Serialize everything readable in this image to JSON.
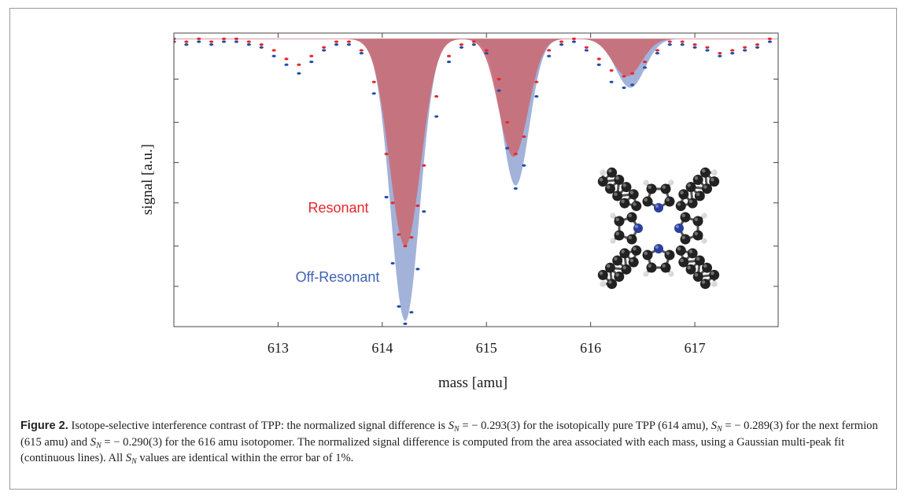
{
  "chart_data": {
    "type": "area",
    "xlabel": "mass [amu]",
    "ylabel": "signal [a.u.]",
    "xlim": [
      612.0,
      617.8
    ],
    "ylim": [
      -1.0,
      0.02
    ],
    "x_ticks": [
      613,
      614,
      615,
      616,
      617
    ],
    "x_tick_labels": [
      "613",
      "614",
      "615",
      "616",
      "617"
    ],
    "y_ticks": [
      -0.86,
      -0.72,
      -0.57,
      -0.43,
      -0.29,
      -0.14
    ],
    "grid": false,
    "legend": "none",
    "series": [
      {
        "name": "Off-Resonant",
        "color": "#9aabd6",
        "marker_color": "#1f4fa8",
        "peaks": [
          {
            "center": 614.22,
            "depth": 0.98,
            "sigma": 0.14
          },
          {
            "center": 615.28,
            "depth": 0.51,
            "sigma": 0.13
          },
          {
            "center": 616.38,
            "depth": 0.17,
            "sigma": 0.14
          }
        ],
        "x": [
          612.0,
          612.12,
          612.24,
          612.36,
          612.48,
          612.6,
          612.72,
          612.84,
          612.96,
          613.08,
          613.2,
          613.32,
          613.44,
          613.56,
          613.68,
          613.8,
          613.92,
          614.04,
          614.1,
          614.16,
          614.22,
          614.28,
          614.34,
          614.4,
          614.52,
          614.64,
          614.76,
          614.88,
          615.0,
          615.12,
          615.2,
          615.28,
          615.36,
          615.48,
          615.6,
          615.72,
          615.84,
          615.96,
          616.08,
          616.2,
          616.32,
          616.4,
          616.52,
          616.64,
          616.76,
          616.88,
          617.0,
          617.12,
          617.24,
          617.36,
          617.48,
          617.6,
          617.72
        ],
        "y": [
          -0.01,
          -0.02,
          -0.01,
          -0.02,
          -0.01,
          -0.01,
          -0.02,
          -0.03,
          -0.06,
          -0.09,
          -0.12,
          -0.08,
          -0.04,
          -0.02,
          -0.02,
          -0.05,
          -0.19,
          -0.55,
          -0.78,
          -0.93,
          -0.99,
          -0.95,
          -0.8,
          -0.6,
          -0.27,
          -0.08,
          -0.03,
          -0.02,
          -0.05,
          -0.18,
          -0.38,
          -0.52,
          -0.44,
          -0.2,
          -0.06,
          -0.02,
          -0.01,
          -0.04,
          -0.09,
          -0.15,
          -0.17,
          -0.16,
          -0.1,
          -0.05,
          -0.02,
          -0.02,
          -0.03,
          -0.04,
          -0.06,
          -0.05,
          -0.04,
          -0.03,
          -0.01
        ]
      },
      {
        "name": "Resonant",
        "color": "#c96e78",
        "marker_color": "#e8262e",
        "peaks": [
          {
            "center": 614.22,
            "depth": 0.72,
            "sigma": 0.15
          },
          {
            "center": 615.26,
            "depth": 0.41,
            "sigma": 0.14
          },
          {
            "center": 616.35,
            "depth": 0.13,
            "sigma": 0.14
          }
        ],
        "x": [
          612.0,
          612.12,
          612.24,
          612.36,
          612.48,
          612.6,
          612.72,
          612.84,
          612.96,
          613.08,
          613.2,
          613.32,
          613.44,
          613.56,
          613.68,
          613.8,
          613.92,
          614.04,
          614.1,
          614.16,
          614.22,
          614.28,
          614.34,
          614.4,
          614.52,
          614.64,
          614.76,
          614.88,
          615.0,
          615.12,
          615.2,
          615.28,
          615.36,
          615.48,
          615.6,
          615.72,
          615.84,
          615.96,
          616.08,
          616.2,
          616.32,
          616.4,
          616.52,
          616.64,
          616.76,
          616.88,
          617.0,
          617.12,
          617.24,
          617.36,
          617.48,
          617.6,
          617.72
        ],
        "y": [
          0.0,
          -0.01,
          0.0,
          -0.01,
          0.0,
          0.0,
          -0.01,
          -0.02,
          -0.04,
          -0.07,
          -0.09,
          -0.06,
          -0.03,
          -0.01,
          -0.01,
          -0.04,
          -0.15,
          -0.4,
          -0.57,
          -0.68,
          -0.72,
          -0.69,
          -0.58,
          -0.44,
          -0.2,
          -0.06,
          -0.02,
          -0.01,
          -0.04,
          -0.14,
          -0.29,
          -0.4,
          -0.34,
          -0.15,
          -0.04,
          -0.01,
          0.0,
          -0.03,
          -0.07,
          -0.11,
          -0.13,
          -0.12,
          -0.08,
          -0.04,
          -0.01,
          -0.01,
          -0.02,
          -0.03,
          -0.05,
          -0.04,
          -0.03,
          -0.02,
          0.0
        ]
      }
    ],
    "annotations": [
      {
        "text": "Resonant",
        "color": "#e8262e"
      },
      {
        "text": "Off-Resonant",
        "color": "#3f63b6"
      }
    ]
  },
  "caption": {
    "label": "Figure 2.",
    "text_1": "Isotope-selective interference contrast of TPP: the normalized signal difference is",
    "value_1": "= − 0.293(3) for the isotopically pure TPP (614 amu),",
    "value_2": "= − 0.289(3) for the next fermion (615 amu) and",
    "value_3": "= − 0.290(3) for the 616 amu isotopomer. The normalized signal difference is computed from the area associated with each mass, using a Gaussian multi-peak fit (continuous lines). All",
    "text_end": "values are identical within the error bar of 1%.",
    "symbol": "S",
    "symbol_sub": "N"
  },
  "molecule": {
    "atom_dark": "#222222",
    "atom_n": "#2a3f9e",
    "atom_h": "#d8d8d8"
  }
}
